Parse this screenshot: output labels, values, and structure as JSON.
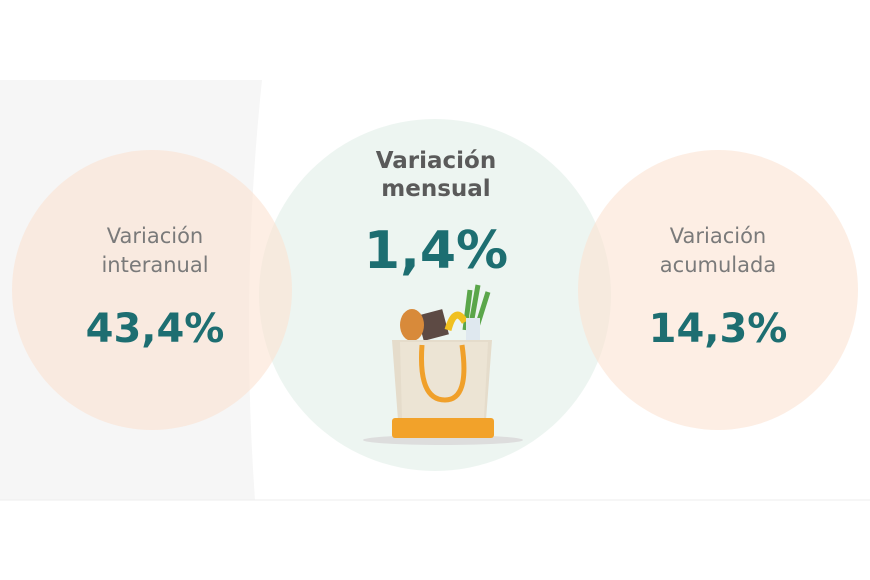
{
  "items": [
    {
      "label_line1": "Variación",
      "label_line2": "interanual",
      "value": "43,4%"
    },
    {
      "label_line1": "Variación",
      "label_line2": "mensual",
      "value": "1,4%"
    },
    {
      "label_line1": "Variación",
      "label_line2": "acumulada",
      "value": "14,3%"
    }
  ]
}
